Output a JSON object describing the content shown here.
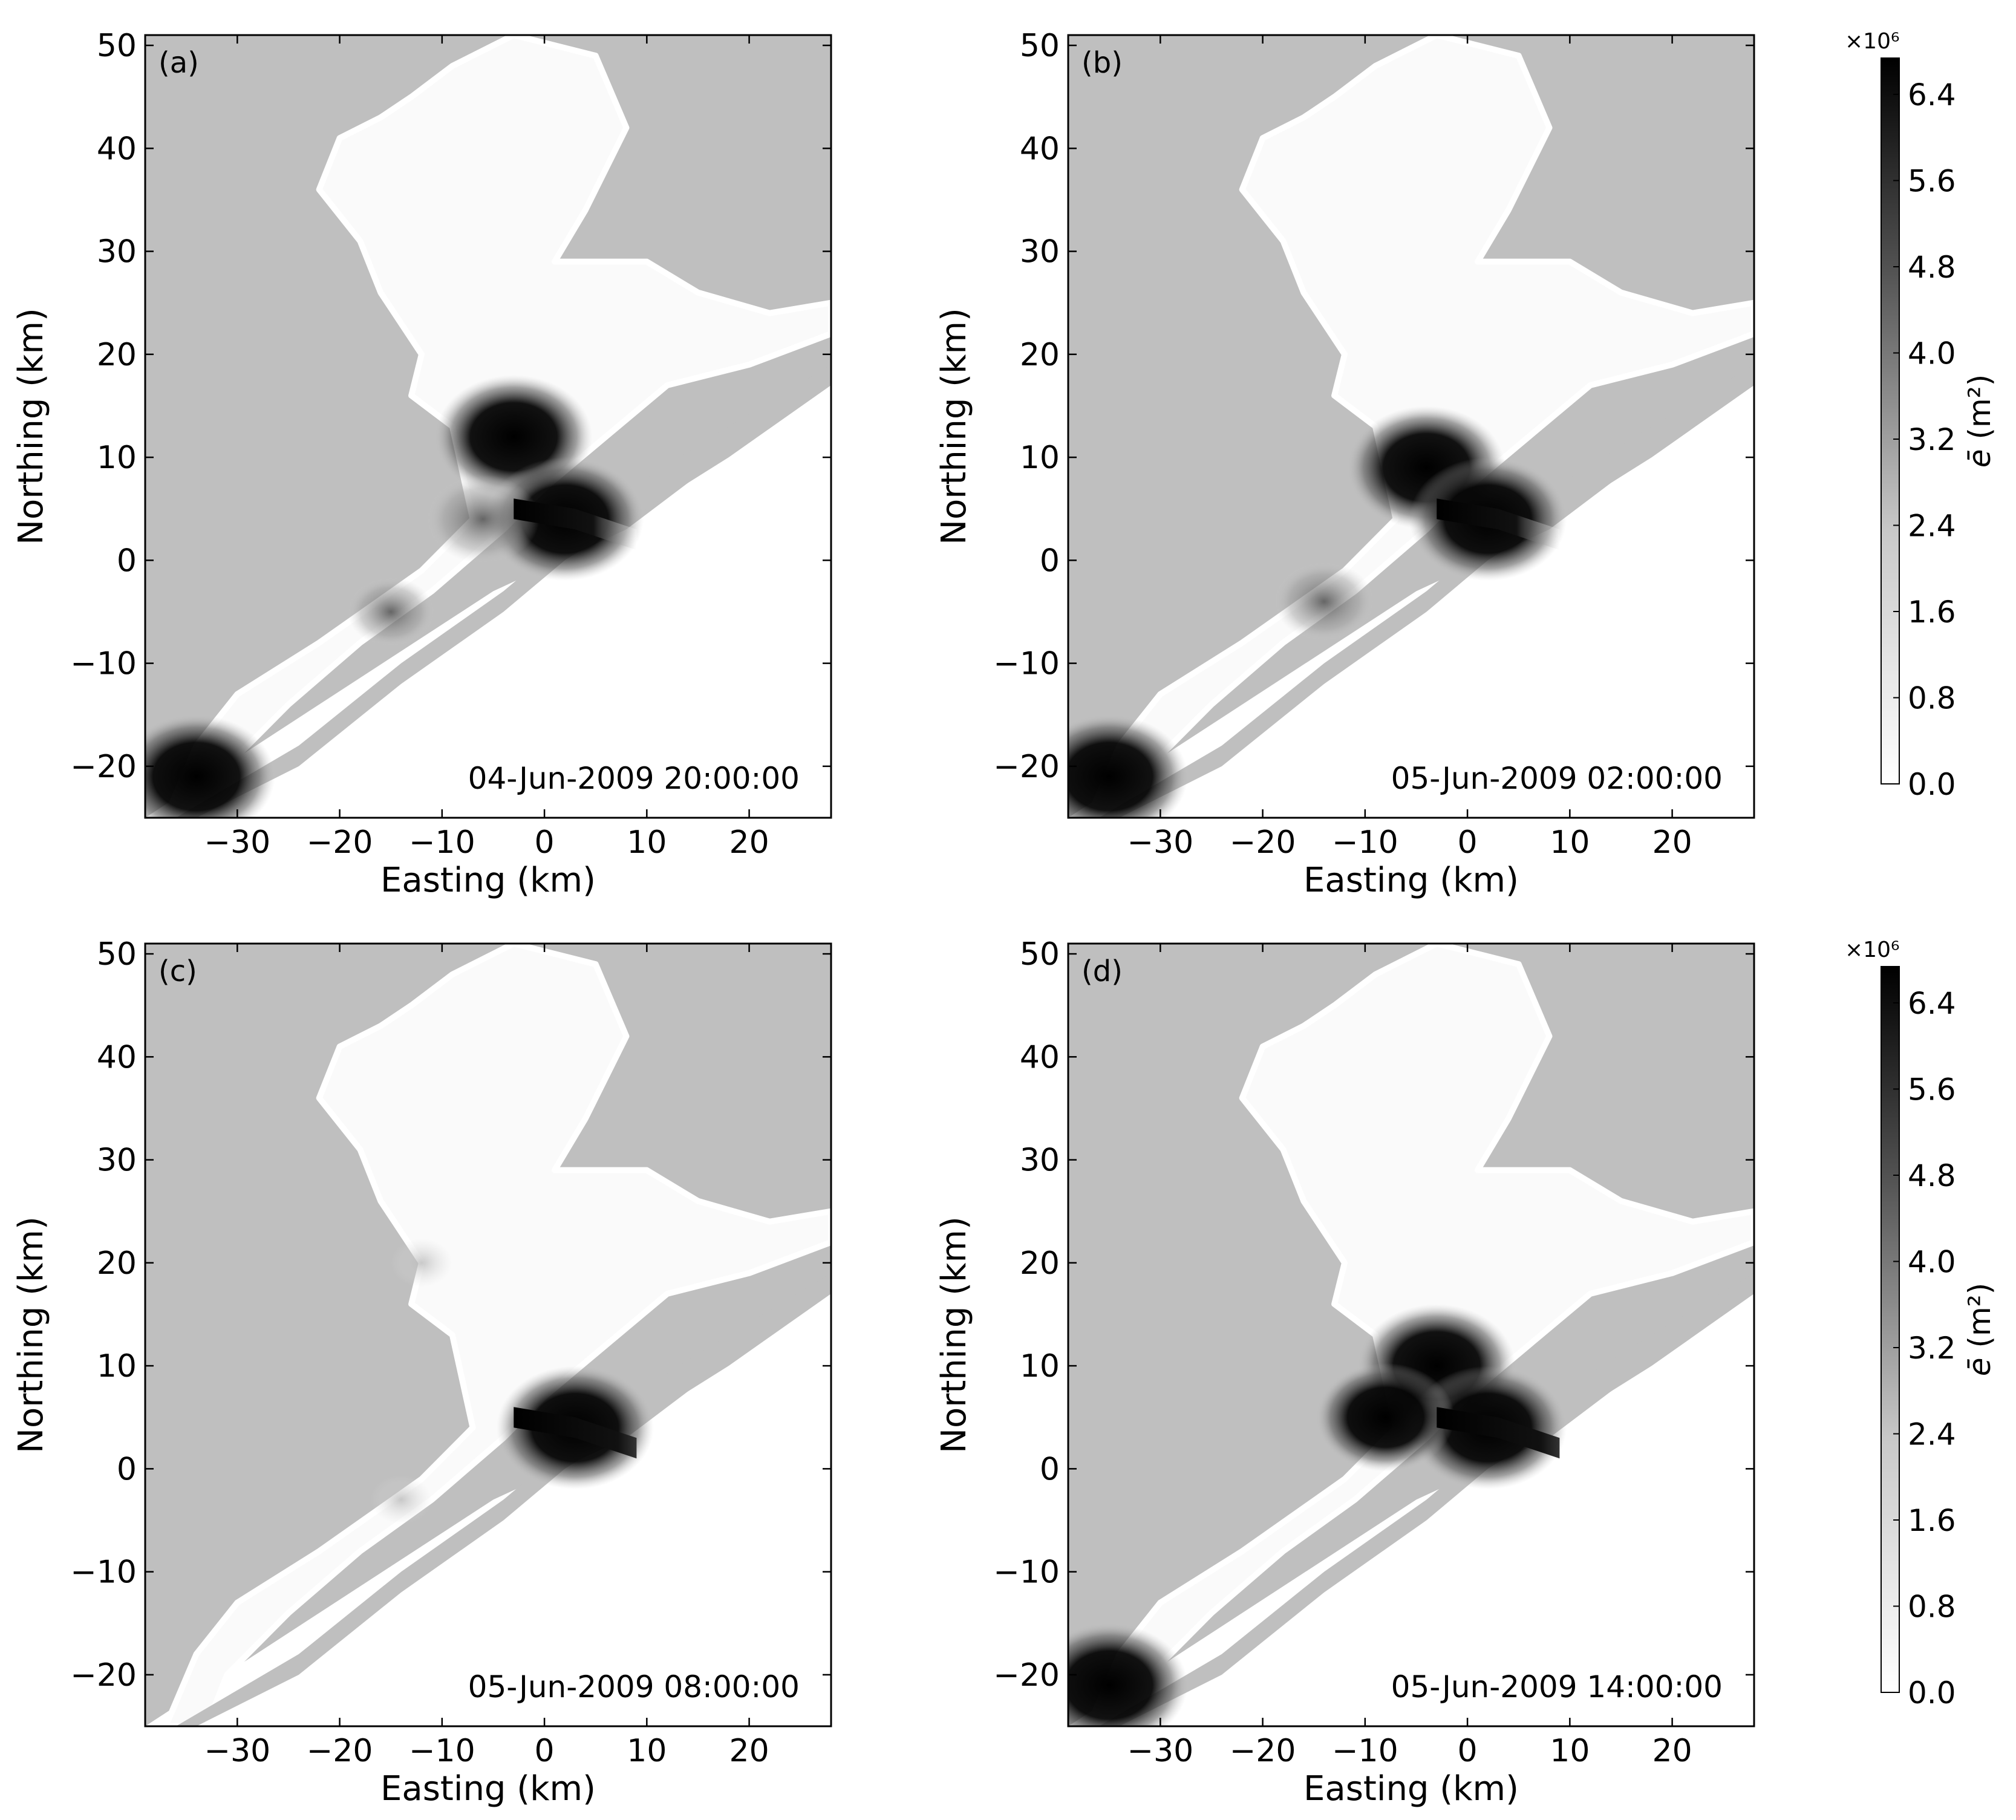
{
  "figure": {
    "panels": [
      {
        "label": "(a)",
        "timestamp": "04-Jun-2009 20:00:00"
      },
      {
        "label": "(b)",
        "timestamp": "05-Jun-2009 02:00:00"
      },
      {
        "label": "(c)",
        "timestamp": "05-Jun-2009 08:00:00"
      },
      {
        "label": "(d)",
        "timestamp": "05-Jun-2009 14:00:00"
      }
    ],
    "x_axis_label": "Easting (km)",
    "y_axis_label": "Northing (km)",
    "x_ticks": [
      "−30",
      "−20",
      "−10",
      "0",
      "10",
      "20"
    ],
    "y_ticks": [
      "−20",
      "−10",
      "0",
      "10",
      "20",
      "30",
      "40",
      "50"
    ],
    "colorbar": {
      "label_symbol": "ē",
      "label_unit": " (m²)",
      "exponent": "×10⁶",
      "ticks": [
        "0.0",
        "0.8",
        "1.6",
        "2.4",
        "3.2",
        "4.0",
        "4.8",
        "5.6",
        "6.4"
      ]
    }
  },
  "colors": {
    "land": "#bfbfbf",
    "water": "#fafafa",
    "high_value": "#000000"
  },
  "chart_data": [
    {
      "type": "heatmap",
      "panel": "(a)",
      "time": "04-Jun-2009 20:00:00",
      "xlabel": "Easting (km)",
      "ylabel": "Northing (km)",
      "xlim": [
        -39,
        28
      ],
      "ylim": [
        -25,
        51
      ],
      "color_range": [
        0,
        6800000
      ],
      "hotspots": [
        {
          "x": -3,
          "y": 12,
          "value": 6800000
        },
        {
          "x": 2,
          "y": 4,
          "value": 6800000
        },
        {
          "x": -6,
          "y": 4,
          "value": 4000000
        },
        {
          "x": -15,
          "y": -5,
          "value": 2400000
        },
        {
          "x": -34,
          "y": -21,
          "value": 6800000
        }
      ]
    },
    {
      "type": "heatmap",
      "panel": "(b)",
      "time": "05-Jun-2009 02:00:00",
      "xlabel": "Easting (km)",
      "ylabel": "Northing (km)",
      "xlim": [
        -39,
        28
      ],
      "ylim": [
        -25,
        51
      ],
      "color_range": [
        0,
        6800000
      ],
      "hotspots": [
        {
          "x": -4,
          "y": 9,
          "value": 6800000
        },
        {
          "x": 2,
          "y": 4,
          "value": 6800000
        },
        {
          "x": -14,
          "y": -4,
          "value": 3200000
        },
        {
          "x": -35,
          "y": -21,
          "value": 6800000
        }
      ]
    },
    {
      "type": "heatmap",
      "panel": "(c)",
      "time": "05-Jun-2009 08:00:00",
      "xlabel": "Easting (km)",
      "ylabel": "Northing (km)",
      "xlim": [
        -39,
        28
      ],
      "ylim": [
        -25,
        51
      ],
      "color_range": [
        0,
        6800000
      ],
      "hotspots": [
        {
          "x": 3,
          "y": 4,
          "value": 6800000
        },
        {
          "x": -12,
          "y": 20,
          "value": 800000
        },
        {
          "x": -14,
          "y": -3,
          "value": 800000
        }
      ]
    },
    {
      "type": "heatmap",
      "panel": "(d)",
      "time": "05-Jun-2009 14:00:00",
      "xlabel": "Easting (km)",
      "ylabel": "Northing (km)",
      "xlim": [
        -39,
        28
      ],
      "ylim": [
        -25,
        51
      ],
      "color_range": [
        0,
        6800000
      ],
      "hotspots": [
        {
          "x": -3,
          "y": 10,
          "value": 6800000
        },
        {
          "x": 2,
          "y": 4,
          "value": 6800000
        },
        {
          "x": -8,
          "y": 5,
          "value": 5600000
        },
        {
          "x": -35,
          "y": -21,
          "value": 6800000
        }
      ]
    }
  ]
}
